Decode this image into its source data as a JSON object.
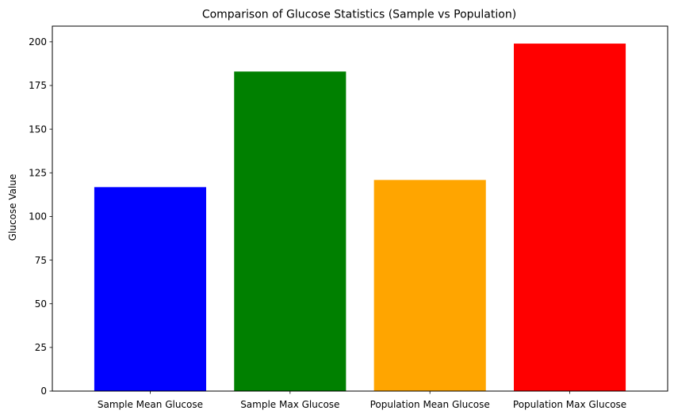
{
  "chart_data": {
    "type": "bar",
    "title": "Comparison of Glucose Statistics (Sample vs Population)",
    "xlabel": "",
    "ylabel": "Glucose Value",
    "categories": [
      "Sample Mean Glucose",
      "Sample Max Glucose",
      "Population Mean Glucose",
      "Population Max Glucose"
    ],
    "values": [
      116.8,
      183,
      120.9,
      199
    ],
    "colors": [
      "#0000ff",
      "#008000",
      "#ffa500",
      "#ff0000"
    ],
    "ylim": [
      0,
      209
    ],
    "yticks": [
      0,
      25,
      50,
      75,
      100,
      125,
      150,
      175,
      200
    ],
    "grid": false,
    "legend": "none"
  }
}
